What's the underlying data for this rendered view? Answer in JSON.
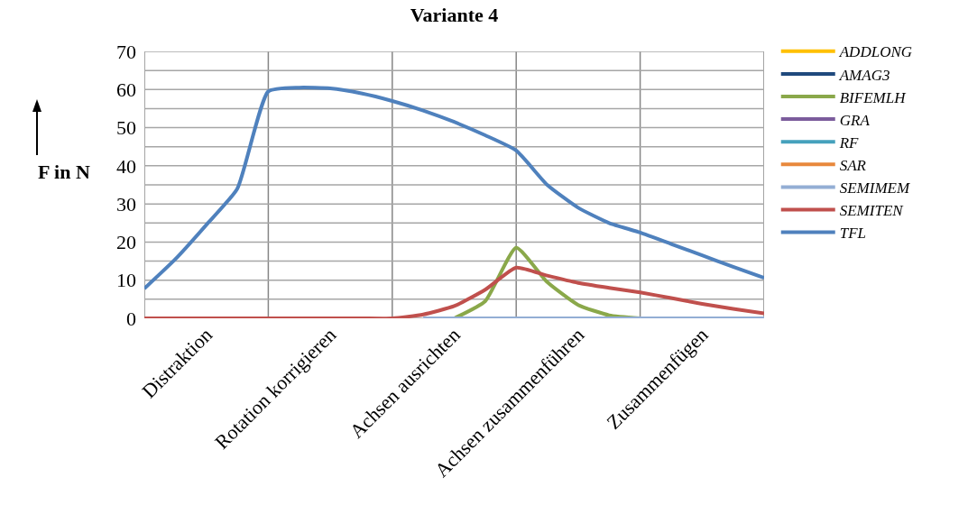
{
  "chart_data": {
    "type": "line",
    "title": "Variante 4",
    "ylabel": "F in N",
    "categories": [
      null,
      null,
      "Distraktion",
      null,
      null,
      null,
      "Rotation korrigieren",
      null,
      null,
      null,
      "Achsen ausrichten",
      null,
      null,
      null,
      "Achsen zusammenführen",
      null,
      null,
      null,
      "Zusammenfügen",
      null,
      null
    ],
    "ylim": [
      0,
      70
    ],
    "yticks": [
      0,
      {
        "value": 5,
        "label": null
      },
      10,
      {
        "value": 15,
        "label": null
      },
      20,
      {
        "value": 25,
        "label": null
      },
      30,
      {
        "value": 35,
        "label": null
      },
      40,
      {
        "value": 45,
        "label": null
      },
      50,
      {
        "value": 55,
        "label": null
      },
      60,
      {
        "value": 65,
        "label": null
      },
      70
    ],
    "grid": true,
    "legend": "right",
    "marker": "none",
    "line_style": "solid",
    "series": [
      {
        "name": "ADDLONG",
        "color": "#ffc000",
        "values": [
          null,
          null,
          null,
          null,
          null,
          null,
          null,
          null,
          null,
          null,
          null,
          null,
          null,
          null,
          null,
          null,
          null,
          null,
          null,
          null,
          null
        ]
      },
      {
        "name": "AMAG3",
        "color": "#1f497d",
        "values": [
          null,
          null,
          null,
          null,
          null,
          null,
          null,
          null,
          null,
          null,
          null,
          null,
          null,
          null,
          null,
          null,
          null,
          null,
          null,
          null,
          null
        ]
      },
      {
        "name": "BIFEMLH",
        "color": "#8aa84a",
        "values": [
          null,
          null,
          null,
          null,
          null,
          null,
          null,
          null,
          null,
          null,
          0,
          4.5,
          18.5,
          9.5,
          3.5,
          0.8,
          0,
          null,
          null,
          null,
          null
        ]
      },
      {
        "name": "GRA",
        "color": "#7b5c9c",
        "values": [
          null,
          null,
          null,
          null,
          null,
          null,
          null,
          null,
          null,
          null,
          null,
          null,
          null,
          null,
          null,
          null,
          null,
          null,
          null,
          null,
          null
        ]
      },
      {
        "name": "RF",
        "color": "#45a1bc",
        "values": [
          null,
          null,
          null,
          null,
          null,
          null,
          null,
          null,
          null,
          null,
          null,
          null,
          null,
          null,
          null,
          null,
          null,
          null,
          null,
          null,
          null
        ]
      },
      {
        "name": "SAR",
        "color": "#e8883c",
        "values": [
          null,
          null,
          null,
          null,
          null,
          null,
          null,
          null,
          null,
          null,
          null,
          null,
          null,
          null,
          null,
          null,
          null,
          null,
          null,
          null,
          null
        ]
      },
      {
        "name": "SEMIMEM",
        "color": "#93aed4",
        "values": [
          null,
          null,
          null,
          null,
          null,
          null,
          null,
          null,
          null,
          0,
          0,
          0,
          0,
          0,
          0,
          0,
          0,
          0,
          0,
          0,
          0
        ]
      },
      {
        "name": "SEMITEN",
        "color": "#c0504d",
        "values": [
          0,
          0,
          0,
          0,
          0,
          0,
          0,
          0,
          0,
          1,
          3.2,
          7.5,
          13.3,
          11.2,
          9.3,
          8,
          6.8,
          5.3,
          3.8,
          2.5,
          1.3
        ]
      },
      {
        "name": "TFL",
        "color": "#4f81bd",
        "values": [
          7.8,
          15.5,
          24.5,
          34,
          59.5,
          60.5,
          60.3,
          59,
          57,
          54.5,
          51.5,
          48,
          44,
          35,
          29,
          25,
          22.5,
          19.5,
          16.5,
          13.5,
          10.6
        ]
      }
    ]
  }
}
